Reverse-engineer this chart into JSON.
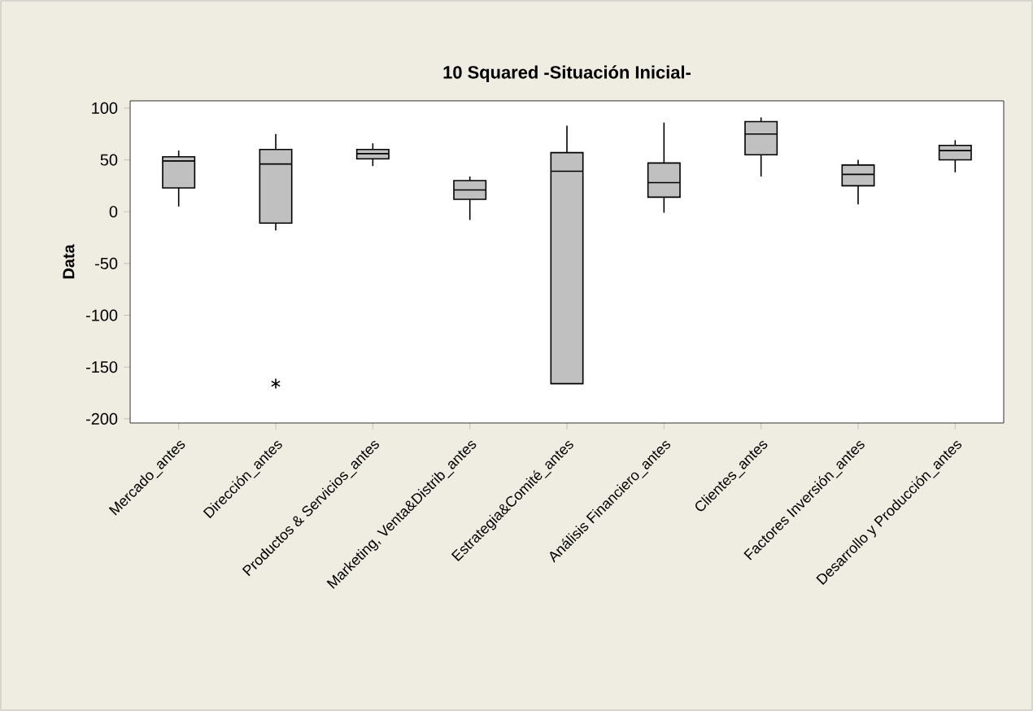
{
  "chart_data": {
    "type": "box",
    "title": "10 Squared -Situación Inicial-",
    "ylabel": "Data",
    "categories": [
      "Mercado_antes",
      "Dirección_antes",
      "Productos & Servicios_antes",
      "Marketing, Venta&Distrib_antes",
      "Estrategia&Comité_antes",
      "Análisis Financiero_antes",
      "Clientes_antes",
      "Factores Inversión_antes",
      "Desarrollo y Producción_antes"
    ],
    "boxes": [
      {
        "low": 5,
        "q1": 23,
        "median": 49,
        "q3": 53,
        "high": 59
      },
      {
        "low": -18,
        "q1": -11,
        "median": 46,
        "q3": 60,
        "high": 75,
        "outliers": [
          -166
        ]
      },
      {
        "low": 44,
        "q1": 51,
        "median": 56,
        "q3": 60,
        "high": 66
      },
      {
        "low": -8,
        "q1": 12,
        "median": 21,
        "q3": 30,
        "high": 34
      },
      {
        "low": -166,
        "q1": -166,
        "median": 39,
        "q3": 57,
        "high": 83
      },
      {
        "low": -1,
        "q1": 14,
        "median": 28,
        "q3": 47,
        "high": 86
      },
      {
        "low": 34,
        "q1": 55,
        "median": 75,
        "q3": 87,
        "high": 91
      },
      {
        "low": 7,
        "q1": 25,
        "median": 36,
        "q3": 45,
        "high": 50
      },
      {
        "low": 38,
        "q1": 50,
        "median": 59,
        "q3": 64,
        "high": 69
      }
    ],
    "color": "#c0c0c0",
    "marker": "star",
    "ylim": [
      -204,
      107
    ],
    "yticks": [
      -200,
      -150,
      -100,
      -50,
      0,
      50,
      100
    ]
  }
}
